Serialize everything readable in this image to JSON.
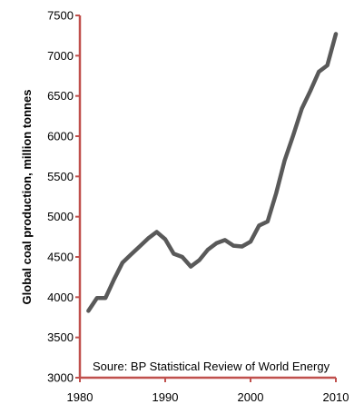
{
  "chart_data": {
    "type": "line",
    "title": "",
    "xlabel": "",
    "ylabel": "Global coal production, million tonnes",
    "xlim": [
      1980,
      2010
    ],
    "ylim": [
      3000,
      7500
    ],
    "x_ticks": [
      1980,
      1990,
      2000,
      2010
    ],
    "y_ticks": [
      3000,
      3500,
      4000,
      4500,
      5000,
      5500,
      6000,
      6500,
      7000,
      7500
    ],
    "grid": false,
    "legend": "none",
    "annotation": "Soure: BP Statistical Review of World Energy",
    "colors": {
      "line": "#595959",
      "axis": "#c0504d"
    },
    "series": [
      {
        "x": [
          1981,
          1982,
          1983,
          1984,
          1985,
          1986,
          1987,
          1988,
          1989,
          1990,
          1991,
          1992,
          1993,
          1994,
          1995,
          1996,
          1997,
          1998,
          1999,
          2000,
          2001,
          2002,
          2003,
          2004,
          2005,
          2006,
          2007,
          2008,
          2009,
          2010
        ],
        "values": [
          3830,
          3990,
          3990,
          4220,
          4430,
          4530,
          4630,
          4730,
          4810,
          4720,
          4540,
          4500,
          4380,
          4460,
          4590,
          4670,
          4710,
          4640,
          4630,
          4690,
          4890,
          4940,
          5290,
          5700,
          6010,
          6340,
          6560,
          6800,
          6880,
          7270
        ]
      }
    ]
  }
}
